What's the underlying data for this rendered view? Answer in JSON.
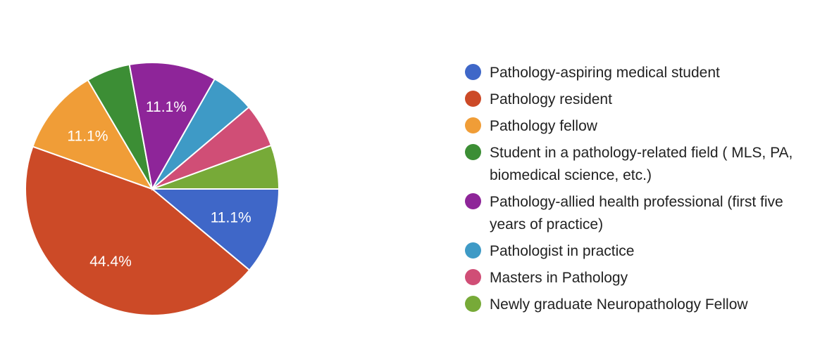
{
  "chart_data": {
    "type": "pie",
    "slices": [
      {
        "label": "Pathology-aspiring medical student",
        "value": 11.1,
        "color": "#3f67c8",
        "data_label": "11.1%"
      },
      {
        "label": "Pathology resident",
        "value": 44.4,
        "color": "#cc4a27",
        "data_label": "44.4%"
      },
      {
        "label": "Pathology fellow",
        "value": 11.1,
        "color": "#f09d37",
        "data_label": "11.1%"
      },
      {
        "label": "Student in a pathology-related field ( MLS, PA, biomedical science, etc.)",
        "value": 5.6,
        "color": "#3c8e35",
        "data_label": ""
      },
      {
        "label": "Pathology-allied health professional (first five years of practice)",
        "value": 11.1,
        "color": "#8e2599",
        "data_label": "11.1%"
      },
      {
        "label": "Pathologist in practice",
        "value": 5.6,
        "color": "#3e9ac6",
        "data_label": ""
      },
      {
        "label": "Masters in Pathology",
        "value": 5.6,
        "color": "#d04e76",
        "data_label": ""
      },
      {
        "label": "Newly graduate Neuropathology Fellow",
        "value": 5.6,
        "color": "#77aa38",
        "data_label": ""
      }
    ],
    "legend_position": "right"
  }
}
